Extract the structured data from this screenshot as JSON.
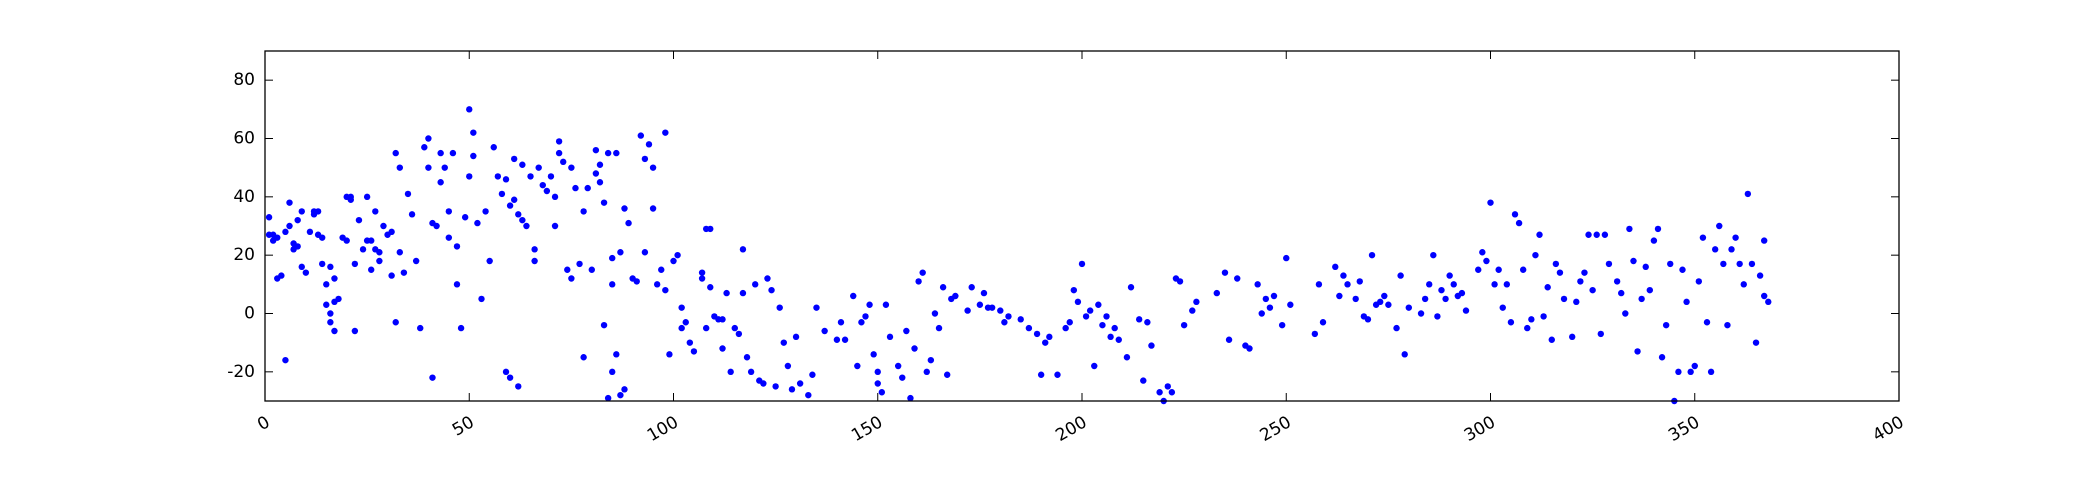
{
  "chart_data": {
    "type": "scatter",
    "color": "#0000ff",
    "xlim": [
      0,
      400
    ],
    "xticks": [
      0,
      50,
      100,
      150,
      200,
      250,
      300,
      350,
      400
    ],
    "ylim": [
      -30,
      90
    ],
    "yticks": [
      -20,
      0,
      20,
      40,
      60,
      80
    ],
    "x": [
      1,
      1,
      2,
      2,
      3,
      3,
      4,
      5,
      5,
      6,
      6,
      7,
      7,
      8,
      8,
      9,
      9,
      10,
      11,
      12,
      12,
      13,
      13,
      14,
      14,
      15,
      15,
      16,
      16,
      16,
      17,
      17,
      17,
      18,
      19,
      20,
      20,
      21,
      21,
      22,
      22,
      23,
      24,
      25,
      25,
      26,
      26,
      27,
      27,
      28,
      28,
      29,
      30,
      31,
      31,
      32,
      32,
      33,
      33,
      34,
      35,
      36,
      37,
      38,
      39,
      40,
      40,
      41,
      41,
      42,
      43,
      43,
      44,
      45,
      45,
      46,
      47,
      47,
      48,
      49,
      50,
      50,
      51,
      51,
      52,
      53,
      54,
      55,
      56,
      57,
      58,
      59,
      59,
      60,
      60,
      61,
      61,
      62,
      62,
      63,
      63,
      64,
      65,
      66,
      66,
      67,
      68,
      69,
      70,
      71,
      71,
      72,
      72,
      73,
      74,
      75,
      75,
      76,
      77,
      78,
      78,
      79,
      80,
      81,
      81,
      82,
      82,
      83,
      83,
      84,
      84,
      85,
      85,
      85,
      86,
      86,
      87,
      87,
      88,
      88,
      89,
      90,
      91,
      92,
      93,
      93,
      94,
      95,
      95,
      96,
      97,
      98,
      98,
      99,
      100,
      101,
      102,
      102,
      103,
      104,
      105,
      107,
      107,
      108,
      108,
      109,
      109,
      110,
      111,
      112,
      112,
      113,
      114,
      115,
      116,
      117,
      117,
      118,
      119,
      120,
      121,
      122,
      123,
      124,
      125,
      126,
      127,
      128,
      129,
      130,
      131,
      133,
      134,
      135,
      137,
      140,
      141,
      142,
      144,
      145,
      146,
      147,
      148,
      149,
      150,
      150,
      151,
      152,
      153,
      155,
      156,
      157,
      158,
      159,
      160,
      161,
      162,
      163,
      164,
      165,
      166,
      167,
      168,
      169,
      172,
      173,
      175,
      176,
      177,
      178,
      180,
      181,
      182,
      185,
      187,
      189,
      190,
      191,
      192,
      194,
      196,
      197,
      198,
      199,
      200,
      201,
      202,
      203,
      204,
      205,
      206,
      207,
      208,
      209,
      211,
      212,
      214,
      215,
      216,
      217,
      219,
      220,
      221,
      222,
      223,
      224,
      225,
      227,
      228,
      233,
      235,
      236,
      238,
      240,
      241,
      243,
      244,
      245,
      246,
      247,
      249,
      250,
      251,
      257,
      258,
      259,
      262,
      263,
      264,
      265,
      267,
      268,
      269,
      270,
      271,
      272,
      273,
      274,
      275,
      277,
      278,
      279,
      280,
      283,
      284,
      285,
      286,
      287,
      288,
      289,
      290,
      291,
      292,
      293,
      294,
      297,
      298,
      299,
      300,
      301,
      302,
      303,
      304,
      305,
      306,
      307,
      308,
      309,
      310,
      311,
      312,
      313,
      314,
      315,
      316,
      317,
      318,
      320,
      321,
      322,
      323,
      324,
      325,
      326,
      327,
      328,
      329,
      331,
      332,
      333,
      334,
      335,
      336,
      337,
      338,
      339,
      340,
      341,
      342,
      343,
      344,
      345,
      346,
      347,
      348,
      349,
      350,
      351,
      352,
      353,
      354,
      355,
      356,
      357,
      358,
      359,
      360,
      361,
      362,
      363,
      364,
      365,
      366,
      367,
      367,
      368
    ],
    "values": [
      27,
      33,
      25,
      27,
      26,
      12,
      13,
      -16,
      28,
      30,
      38,
      22,
      24,
      32,
      23,
      35,
      16,
      14,
      28,
      34,
      35,
      27,
      35,
      26,
      17,
      3,
      10,
      16,
      0,
      -3,
      4,
      -6,
      12,
      5,
      26,
      25,
      40,
      40,
      39,
      -6,
      17,
      32,
      22,
      25,
      40,
      25,
      15,
      35,
      22,
      21,
      18,
      30,
      27,
      28,
      13,
      -3,
      55,
      50,
      21,
      14,
      41,
      34,
      18,
      -5,
      57,
      60,
      50,
      31,
      -22,
      30,
      55,
      45,
      50,
      35,
      26,
      55,
      23,
      10,
      -5,
      33,
      70,
      47,
      62,
      54,
      31,
      5,
      35,
      18,
      57,
      47,
      41,
      -20,
      46,
      -22,
      37,
      53,
      39,
      -25,
      34,
      32,
      51,
      30,
      47,
      22,
      18,
      50,
      44,
      42,
      47,
      40,
      30,
      59,
      55,
      52,
      15,
      50,
      12,
      43,
      17,
      -15,
      35,
      43,
      15,
      56,
      48,
      45,
      51,
      -4,
      38,
      -29,
      55,
      19,
      10,
      -20,
      -14,
      55,
      -28,
      21,
      36,
      -26,
      31,
      12,
      11,
      61,
      53,
      21,
      58,
      50,
      36,
      10,
      15,
      62,
      8,
      -14,
      18,
      20,
      2,
      -5,
      -3,
      -10,
      -13,
      14,
      12,
      -5,
      29,
      29,
      9,
      -1,
      -2,
      -12,
      -2,
      7,
      -20,
      -5,
      -7,
      22,
      7,
      -15,
      -20,
      10,
      -23,
      -24,
      12,
      8,
      -25,
      2,
      -10,
      -18,
      -26,
      -8,
      -24,
      -28,
      -21,
      2,
      -6,
      -9,
      -3,
      -9,
      6,
      -18,
      -3,
      -1,
      3,
      -14,
      -24,
      -20,
      -27,
      3,
      -8,
      -18,
      -22,
      -6,
      -29,
      -12,
      11,
      14,
      -20,
      -16,
      0,
      -5,
      9,
      -21,
      5,
      6,
      1,
      9,
      3,
      7,
      2,
      2,
      1,
      -3,
      -1,
      -2,
      -5,
      -7,
      -21,
      -10,
      -8,
      -21,
      -5,
      -3,
      8,
      4,
      17,
      -1,
      1,
      -18,
      3,
      -4,
      -1,
      -8,
      -5,
      -9,
      -15,
      9,
      -2,
      -23,
      -3,
      -11,
      -27,
      -30,
      -25,
      -27,
      12,
      11,
      -4,
      1,
      4,
      7,
      14,
      -9,
      12,
      -11,
      -12,
      10,
      0,
      5,
      2,
      6,
      -4,
      19,
      3,
      -7,
      10,
      -3,
      16,
      6,
      13,
      10,
      5,
      11,
      -1,
      -2,
      20,
      3,
      4,
      6,
      3,
      -5,
      13,
      -14,
      2,
      0,
      5,
      10,
      20,
      -1,
      8,
      5,
      13,
      10,
      6,
      7,
      1,
      15,
      21,
      18,
      38,
      10,
      15,
      2,
      10,
      -3,
      34,
      31,
      15,
      -5,
      -2,
      20,
      27,
      -1,
      9,
      -9,
      17,
      14,
      5,
      -8,
      4,
      11,
      14,
      27,
      8,
      27,
      -7,
      27,
      17,
      11,
      7,
      0,
      29,
      18,
      -13,
      5,
      16,
      8,
      25,
      29,
      -15,
      -4,
      17,
      -30,
      -20,
      15,
      4,
      -20,
      -18,
      11,
      26,
      -3,
      -20,
      22,
      30,
      17,
      -4,
      22,
      26,
      17,
      10,
      41,
      17,
      -10,
      13,
      6,
      25,
      4
    ]
  }
}
